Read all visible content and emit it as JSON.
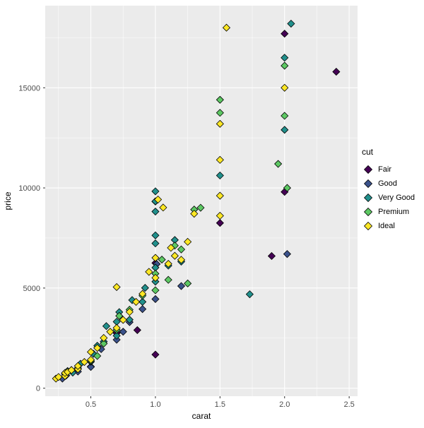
{
  "figure": {
    "background": "#ffffff",
    "panel_background": "#ebebeb",
    "gridline_color": "#ffffff",
    "tick_label_color": "#4d4d4d",
    "marker_outline_color": "#000000"
  },
  "chart_data": {
    "type": "scatter",
    "title": "",
    "xlabel": "carat",
    "ylabel": "price",
    "legend_title": "cut",
    "legend_position": "right",
    "grid": true,
    "marker": "diamond",
    "xlim": [
      0.147,
      2.565
    ],
    "ylim": [
      -400,
      19100
    ],
    "x_ticks": [
      0.5,
      1.0,
      1.5,
      2.0,
      2.5
    ],
    "x_tick_labels": [
      "0.5",
      "1.0",
      "1.5",
      "2.0",
      "2.5"
    ],
    "y_ticks": [
      0,
      5000,
      10000,
      15000
    ],
    "y_tick_labels": [
      "0",
      "5000",
      "10000",
      "15000"
    ],
    "x_minor_ticks": [
      0.25,
      0.75,
      1.25,
      1.75,
      2.25
    ],
    "y_minor_ticks": [
      2500,
      7500,
      12500,
      17500
    ],
    "series": [
      {
        "name": "Fair",
        "color": "#440154",
        "points": [
          [
            0.3,
            600
          ],
          [
            0.5,
            1080
          ],
          [
            0.7,
            2750
          ],
          [
            0.86,
            2900
          ],
          [
            1.0,
            1680
          ],
          [
            1.0,
            6250
          ],
          [
            1.5,
            8250
          ],
          [
            1.9,
            6600
          ],
          [
            2.0,
            9800
          ],
          [
            2.0,
            17700
          ],
          [
            2.4,
            15800
          ]
        ]
      },
      {
        "name": "Good",
        "color": "#3B528B",
        "points": [
          [
            0.28,
            480
          ],
          [
            0.31,
            640
          ],
          [
            0.4,
            830
          ],
          [
            0.5,
            1060
          ],
          [
            0.58,
            1950
          ],
          [
            0.7,
            2420
          ],
          [
            0.75,
            2820
          ],
          [
            0.8,
            3300
          ],
          [
            0.9,
            3950
          ],
          [
            1.0,
            4450
          ],
          [
            1.01,
            6200
          ],
          [
            1.0,
            9320
          ],
          [
            1.2,
            5100
          ],
          [
            2.02,
            6700
          ]
        ]
      },
      {
        "name": "Very Good",
        "color": "#21908C",
        "points": [
          [
            0.3,
            710
          ],
          [
            0.32,
            860
          ],
          [
            0.36,
            780
          ],
          [
            0.4,
            960
          ],
          [
            0.42,
            1220
          ],
          [
            0.5,
            1320
          ],
          [
            0.52,
            1720
          ],
          [
            0.55,
            2120
          ],
          [
            0.6,
            2330
          ],
          [
            0.62,
            3100
          ],
          [
            0.7,
            2620
          ],
          [
            0.7,
            3320
          ],
          [
            0.72,
            3800
          ],
          [
            0.8,
            3420
          ],
          [
            0.82,
            4400
          ],
          [
            0.9,
            4310
          ],
          [
            0.92,
            5010
          ],
          [
            1.0,
            5320
          ],
          [
            1.0,
            6020
          ],
          [
            1.0,
            7230
          ],
          [
            1.0,
            7630
          ],
          [
            1.0,
            8820
          ],
          [
            1.0,
            9330
          ],
          [
            1.0,
            9830
          ],
          [
            1.1,
            6120
          ],
          [
            1.15,
            7400
          ],
          [
            1.2,
            6320
          ],
          [
            1.5,
            10620
          ],
          [
            1.73,
            4690
          ],
          [
            2.0,
            12900
          ],
          [
            2.0,
            16500
          ],
          [
            2.05,
            18200
          ]
        ]
      },
      {
        "name": "Premium",
        "color": "#5DC863",
        "points": [
          [
            0.3,
            760
          ],
          [
            0.35,
            910
          ],
          [
            0.4,
            1010
          ],
          [
            0.5,
            1360
          ],
          [
            0.55,
            1610
          ],
          [
            0.6,
            2230
          ],
          [
            0.7,
            2910
          ],
          [
            0.72,
            3610
          ],
          [
            0.8,
            3920
          ],
          [
            0.9,
            4620
          ],
          [
            1.0,
            4890
          ],
          [
            1.0,
            5720
          ],
          [
            1.05,
            6420
          ],
          [
            1.1,
            5410
          ],
          [
            1.15,
            7120
          ],
          [
            1.2,
            6930
          ],
          [
            1.25,
            5230
          ],
          [
            1.3,
            8920
          ],
          [
            1.35,
            9010
          ],
          [
            1.5,
            14400
          ],
          [
            1.5,
            13750
          ],
          [
            1.95,
            11200
          ],
          [
            2.0,
            13600
          ],
          [
            2.0,
            16100
          ],
          [
            2.02,
            10000
          ]
        ]
      },
      {
        "name": "Ideal",
        "color": "#FDE725",
        "points": [
          [
            0.23,
            480
          ],
          [
            0.25,
            560
          ],
          [
            0.3,
            610
          ],
          [
            0.3,
            760
          ],
          [
            0.32,
            810
          ],
          [
            0.35,
            905
          ],
          [
            0.4,
            950
          ],
          [
            0.4,
            1110
          ],
          [
            0.45,
            1310
          ],
          [
            0.5,
            1420
          ],
          [
            0.5,
            1810
          ],
          [
            0.55,
            2010
          ],
          [
            0.6,
            2510
          ],
          [
            0.65,
            2820
          ],
          [
            0.7,
            3010
          ],
          [
            0.7,
            5050
          ],
          [
            0.75,
            3410
          ],
          [
            0.8,
            3810
          ],
          [
            0.85,
            4310
          ],
          [
            0.9,
            4710
          ],
          [
            0.95,
            5810
          ],
          [
            1.0,
            5510
          ],
          [
            1.0,
            6510
          ],
          [
            1.02,
            9420
          ],
          [
            1.06,
            9020
          ],
          [
            1.1,
            6210
          ],
          [
            1.12,
            7010
          ],
          [
            1.15,
            6610
          ],
          [
            1.2,
            6410
          ],
          [
            1.25,
            7310
          ],
          [
            1.3,
            8710
          ],
          [
            1.5,
            8610
          ],
          [
            1.5,
            9610
          ],
          [
            1.5,
            11400
          ],
          [
            1.5,
            13200
          ],
          [
            1.55,
            18000
          ],
          [
            2.0,
            15000
          ]
        ]
      }
    ]
  }
}
